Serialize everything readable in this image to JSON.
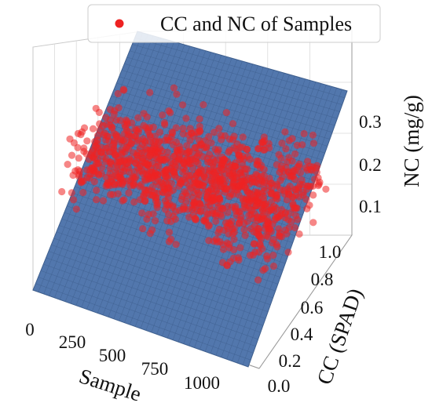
{
  "chart_data": {
    "type": "scatter3d",
    "title": "",
    "legend": {
      "entries": [
        "CC and NC of Samples"
      ],
      "position": "top-right"
    },
    "colors": {
      "points": "#ee2222",
      "surface": "#5277ad",
      "surface_grid": "#3e5f8e"
    },
    "x_axis": {
      "label": "Sample",
      "ticks": [
        "0",
        "250",
        "500",
        "750",
        "1000"
      ],
      "range": [
        0,
        1150
      ]
    },
    "y_axis": {
      "label": "CC (SPAD)",
      "ticks": [
        "0.0",
        "0.2",
        "0.4",
        "0.6",
        "0.8",
        "1.0"
      ],
      "range": [
        0,
        1
      ]
    },
    "z_axis": {
      "label": "NC (mg/g)",
      "ticks": [
        "0.1",
        "0.2",
        "0.3"
      ],
      "range": [
        0.04,
        0.38
      ]
    },
    "surface": {
      "type": "plane",
      "description": "fitted plane NC vs Sample and CC",
      "z_at_origin": 0.03,
      "z_at_max": 0.38
    },
    "series": [
      {
        "name": "CC and NC of Samples",
        "n_points_approx": 1100,
        "sample_range": [
          0,
          1100
        ],
        "nc_range": [
          0.1,
          0.34
        ]
      }
    ]
  }
}
